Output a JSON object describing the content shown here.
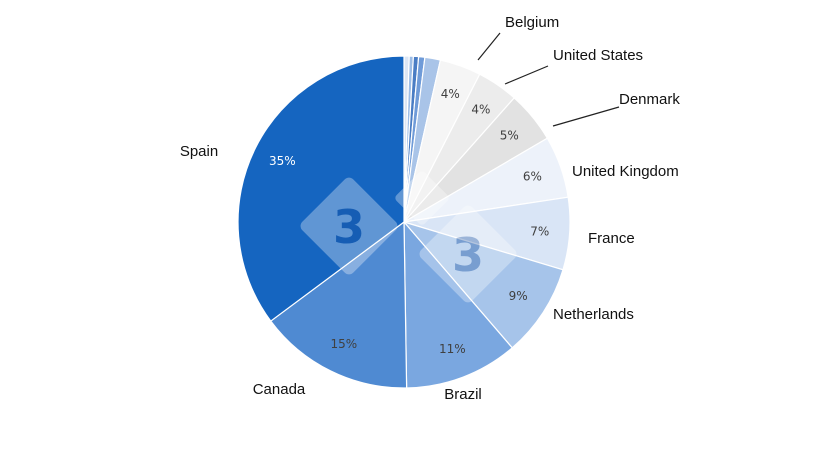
{
  "chart_data": {
    "type": "pie",
    "start_angle_deg": 0,
    "direction": "clockwise",
    "slices": [
      {
        "label": "",
        "value": 0.5,
        "pct_label": "",
        "color": "#dce6f4"
      },
      {
        "label": "",
        "value": 0.4,
        "pct_label": "",
        "color": "#9dbde6"
      },
      {
        "label": "",
        "value": 0.5,
        "pct_label": "",
        "color": "#4a7dc4"
      },
      {
        "label": "",
        "value": 0.6,
        "pct_label": "",
        "color": "#6f9bd8"
      },
      {
        "label": "",
        "value": 1.5,
        "pct_label": "",
        "color": "#a9c4e8"
      },
      {
        "label": "Belgium",
        "value": 4,
        "pct_label": "4%",
        "color": "#f5f5f5"
      },
      {
        "label": "United States",
        "value": 4,
        "pct_label": "4%",
        "color": "#ececec"
      },
      {
        "label": "Denmark",
        "value": 5,
        "pct_label": "5%",
        "color": "#e2e2e2"
      },
      {
        "label": "United Kingdom",
        "value": 6,
        "pct_label": "6%",
        "color": "#edf2fa"
      },
      {
        "label": "France",
        "value": 7,
        "pct_label": "7%",
        "color": "#d9e5f6"
      },
      {
        "label": "Netherlands",
        "value": 9,
        "pct_label": "9%",
        "color": "#a6c4ea"
      },
      {
        "label": "Brazil",
        "value": 11,
        "pct_label": "11%",
        "color": "#7aa7e0"
      },
      {
        "label": "Canada",
        "value": 15,
        "pct_label": "15%",
        "color": "#4f8ad2"
      },
      {
        "label": "Spain",
        "value": 35,
        "pct_label": "35%",
        "color": "#1565c0"
      }
    ],
    "legend": "none",
    "title": ""
  },
  "watermark": {
    "text": "3"
  }
}
